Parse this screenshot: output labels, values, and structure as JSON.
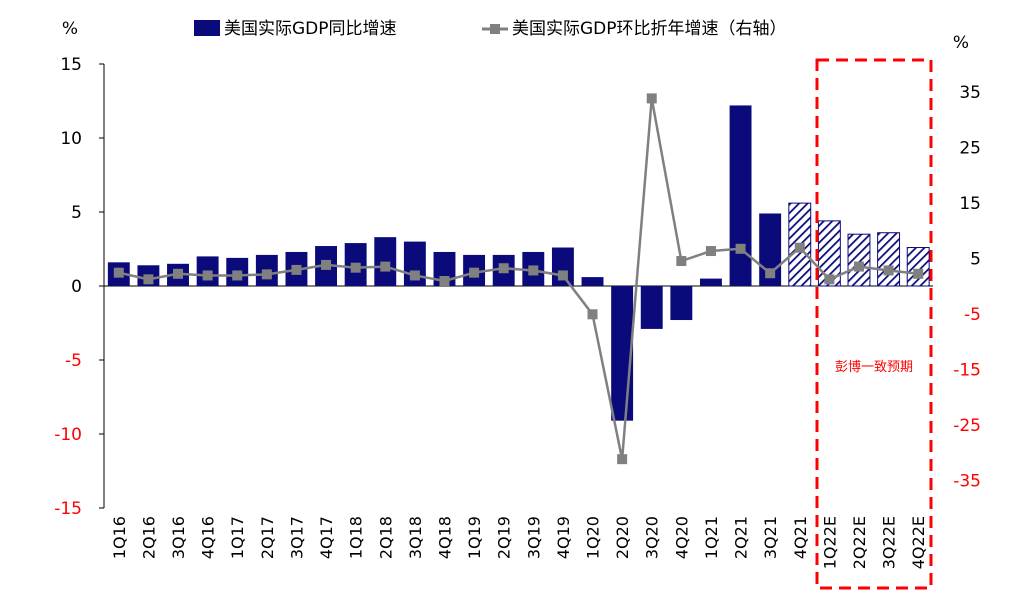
{
  "chart_data": {
    "type": "bar+line",
    "categories": [
      "1Q16",
      "2Q16",
      "3Q16",
      "4Q16",
      "1Q17",
      "2Q17",
      "3Q17",
      "4Q17",
      "1Q18",
      "2Q18",
      "3Q18",
      "4Q18",
      "1Q19",
      "2Q19",
      "3Q19",
      "4Q19",
      "1Q20",
      "2Q20",
      "3Q20",
      "4Q20",
      "1Q21",
      "2Q21",
      "3Q21",
      "4Q21",
      "1Q22E",
      "2Q22E",
      "3Q22E",
      "4Q22E"
    ],
    "series": [
      {
        "name": "美国实际GDP同比增速",
        "axis": "left",
        "kind": "bar",
        "color": "#0a0a7a",
        "values": [
          1.6,
          1.4,
          1.5,
          2.0,
          1.9,
          2.1,
          2.3,
          2.7,
          2.9,
          3.3,
          3.0,
          2.3,
          2.1,
          2.1,
          2.3,
          2.6,
          0.6,
          -9.1,
          -2.9,
          -2.3,
          0.5,
          12.2,
          4.9,
          5.6,
          4.4,
          3.5,
          3.6,
          2.6
        ]
      },
      {
        "name": "美国实际GDP环比折年增速（右轴）",
        "axis": "right",
        "kind": "line",
        "color": "#808080",
        "values": [
          2.4,
          1.2,
          2.2,
          1.9,
          1.9,
          2.1,
          2.9,
          3.8,
          3.3,
          3.5,
          1.9,
          0.9,
          2.4,
          3.2,
          2.8,
          1.9,
          -5.1,
          -31.2,
          33.8,
          4.5,
          6.3,
          6.7,
          2.3,
          6.9,
          1.2,
          3.5,
          2.8,
          2.2
        ]
      }
    ],
    "forecast_start_index": 23,
    "left_axis": {
      "label": "%",
      "ylim": [
        -15,
        15
      ],
      "ticks": [
        "15",
        "10",
        "5",
        "0",
        "-5",
        "-10",
        "-15"
      ]
    },
    "right_axis": {
      "label": "%",
      "ylim": [
        -40,
        40
      ],
      "ticks": [
        "35",
        "25",
        "15",
        "5",
        "-5",
        "-15",
        "-25",
        "-35"
      ]
    },
    "negative_tick_color": "#ff0000",
    "annotation": "彭博一致预期",
    "annotation_color": "#ff0000",
    "legend_position": "top"
  }
}
